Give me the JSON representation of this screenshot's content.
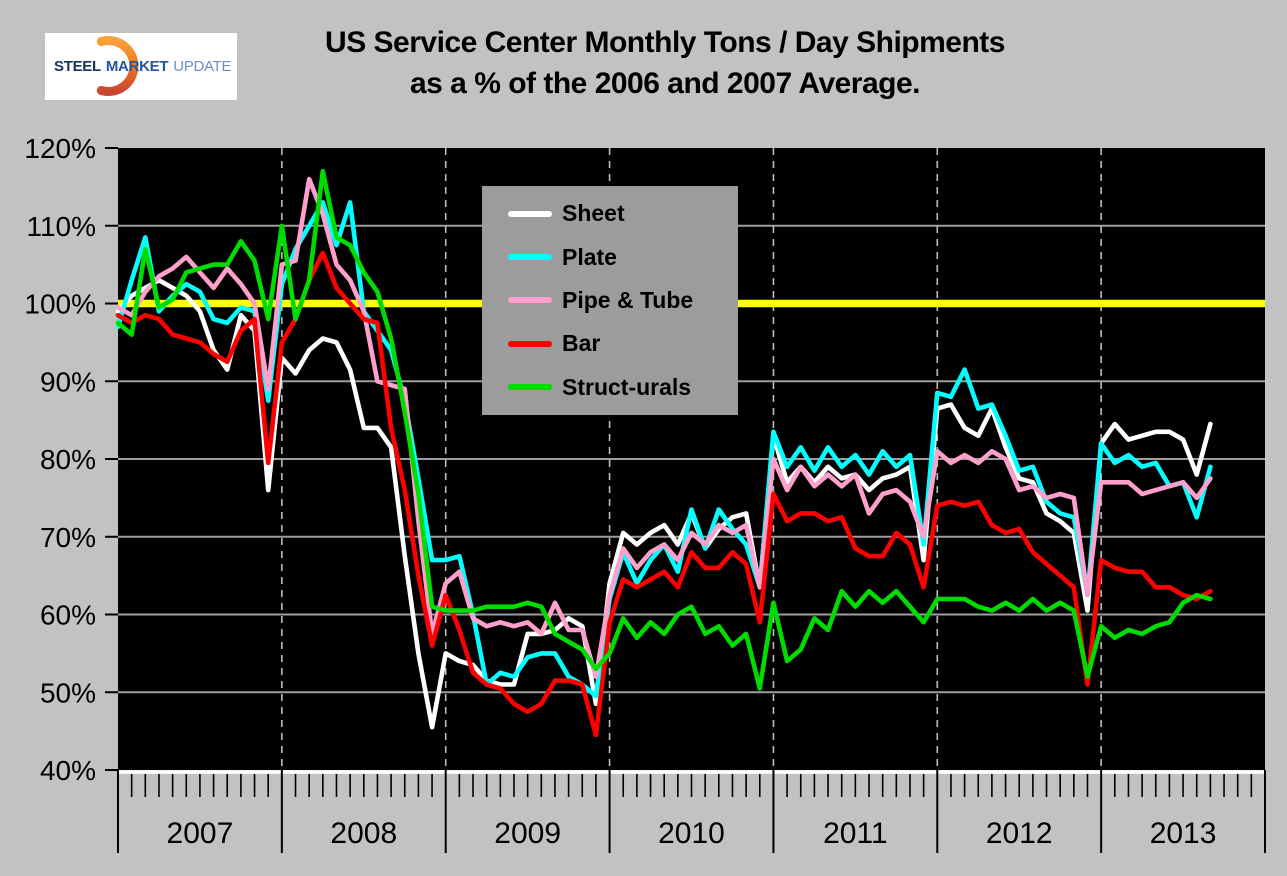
{
  "header": {
    "logo": {
      "word1": "STEEL",
      "word2": "MARKET",
      "word3": "UPDATE"
    }
  },
  "chart_data": {
    "type": "line",
    "title": "US Service Center Monthly Tons / Day Shipments as a % of the 2006 and 2007 Average.",
    "title_line1": "US Service Center Monthly Tons / Day Shipments",
    "title_line2": "as a % of the 2006 and 2007 Average.",
    "x_interval": "month",
    "x_start": "2007-01",
    "x_end": "2013-09",
    "year_labels": [
      "2007",
      "2008",
      "2009",
      "2010",
      "2011",
      "2012",
      "2013"
    ],
    "ylim": [
      40,
      120
    ],
    "y_tick_values": [
      120,
      110,
      100,
      90,
      80,
      70,
      60,
      50,
      40
    ],
    "y_tick_labels": [
      "120%",
      "110%",
      "100%",
      "90%",
      "80%",
      "70%",
      "60%",
      "50%",
      "40%"
    ],
    "reference_line": {
      "value": 100,
      "color": "#FFFF00"
    },
    "grid": {
      "horizontal": "solid gray",
      "vertical": "dashed gray at year boundaries"
    },
    "plot_bg": "#000000",
    "page_bg": "#C2C2C2",
    "legend_position": "upper middle-left inside plot",
    "legend_bg": "#9C9C9C",
    "series": [
      {
        "name": "Sheet",
        "color": "#FFFFFF",
        "values": [
          99,
          101,
          102,
          103,
          102,
          101,
          99,
          94,
          91.5,
          98.5,
          96.5,
          76,
          93,
          91,
          94,
          95.5,
          95,
          91.5,
          84,
          84,
          81.5,
          67.5,
          55,
          45.5,
          55,
          54,
          53.5,
          51.5,
          51,
          51,
          57.5,
          57.5,
          58,
          59.5,
          58.5,
          48.5,
          64,
          70.5,
          69,
          70.5,
          71.5,
          69,
          73,
          68.5,
          71,
          72.5,
          73,
          63.5,
          83,
          77,
          79,
          77,
          79,
          77.5,
          78,
          76,
          77.5,
          78,
          79,
          67,
          86.5,
          87,
          84,
          83,
          86.5,
          81.5,
          77.5,
          77,
          73,
          72,
          70.5,
          60.5,
          82,
          84.5,
          82.5,
          83,
          83.5,
          83.5,
          82.5,
          78,
          84.5
        ]
      },
      {
        "name": "Plate",
        "color": "#00FFFF",
        "values": [
          97,
          103,
          108.5,
          99,
          101,
          102.5,
          101.5,
          98,
          97.5,
          99.5,
          99,
          87.5,
          102.5,
          107,
          110,
          113,
          107.5,
          113,
          99,
          96.5,
          94,
          87.5,
          77.5,
          67,
          67,
          67.5,
          60,
          51,
          52.5,
          52,
          54.5,
          55,
          55,
          52,
          51,
          49.5,
          62,
          68,
          64,
          67,
          69,
          65.5,
          73.5,
          68.5,
          73.5,
          71,
          69,
          63.5,
          83.5,
          79,
          81.5,
          78.5,
          81.5,
          79,
          80.5,
          78,
          81,
          79,
          80.5,
          69,
          88.5,
          88,
          91.5,
          86.5,
          87,
          83,
          78.5,
          79,
          74.5,
          73,
          72.5,
          62.5,
          82,
          79.5,
          80.5,
          79,
          79.5,
          76.5,
          77,
          72.5,
          79
        ]
      },
      {
        "name": "Pipe & Tube",
        "color": "#FF9FCC",
        "values": [
          99.5,
          98.5,
          101.5,
          103.5,
          104.5,
          106,
          104,
          102,
          104.5,
          102.5,
          100,
          89,
          105,
          105.5,
          116,
          111.5,
          105,
          103,
          99,
          90,
          89.5,
          89,
          72,
          57.5,
          64,
          65.5,
          59.5,
          58.5,
          59,
          58.5,
          59,
          57.5,
          61.5,
          58,
          58,
          52,
          62.5,
          68.5,
          66,
          68,
          69,
          67,
          70.5,
          69,
          71.5,
          70.5,
          71.5,
          63.5,
          80,
          76,
          79,
          76.5,
          78,
          76.5,
          78,
          73,
          75.5,
          76,
          74.5,
          70,
          81,
          79.5,
          80.5,
          79.5,
          81,
          80,
          76,
          76.5,
          75,
          75.5,
          75,
          62.5,
          77,
          77,
          77,
          75.5,
          76,
          76.5,
          77,
          75,
          77.5
        ]
      },
      {
        "name": "Bar",
        "color": "#FF0000",
        "values": [
          98.5,
          97.5,
          98.5,
          98,
          96,
          95.5,
          95,
          93.5,
          92.5,
          96.5,
          98,
          79.5,
          95,
          98,
          103,
          106.5,
          102,
          100,
          98,
          97.5,
          84,
          76,
          65,
          56,
          62.5,
          58,
          52.5,
          51,
          50.5,
          48.5,
          47.5,
          48.5,
          51.5,
          51.5,
          51,
          44.5,
          59,
          64.5,
          63.5,
          64.5,
          65.5,
          63.5,
          68,
          66,
          66,
          68,
          66.5,
          59,
          75.5,
          72,
          73,
          73,
          72,
          72.5,
          68.5,
          67.5,
          67.5,
          70.5,
          69,
          63.5,
          74,
          74.5,
          74,
          74.5,
          71.5,
          70.5,
          71,
          68,
          66.5,
          65,
          63.5,
          51,
          67,
          66,
          65.5,
          65.5,
          63.5,
          63.5,
          62.5,
          62,
          63
        ]
      },
      {
        "name": "Struct-urals",
        "color": "#00DC00",
        "values": [
          97.5,
          96,
          107,
          99.5,
          100.5,
          104,
          104.5,
          105,
          105,
          108,
          105.5,
          98,
          110,
          98,
          103,
          117,
          108.5,
          107.5,
          104,
          101.5,
          95.5,
          86,
          75.5,
          61,
          60.5,
          60.5,
          60.5,
          61,
          61,
          61,
          61.5,
          61,
          57.5,
          56.5,
          55.5,
          53,
          55,
          59.5,
          57,
          59,
          57.5,
          60,
          61,
          57.5,
          58.5,
          56,
          57.5,
          50.5,
          61.5,
          54,
          55.5,
          59.5,
          58,
          63,
          61,
          63,
          61.5,
          63,
          61,
          59,
          62,
          62,
          62,
          61,
          60.5,
          61.5,
          60.5,
          62,
          60.5,
          61.5,
          60.5,
          52,
          58.5,
          57,
          58,
          57.5,
          58.5,
          59,
          61.5,
          62.5,
          62
        ]
      }
    ]
  }
}
